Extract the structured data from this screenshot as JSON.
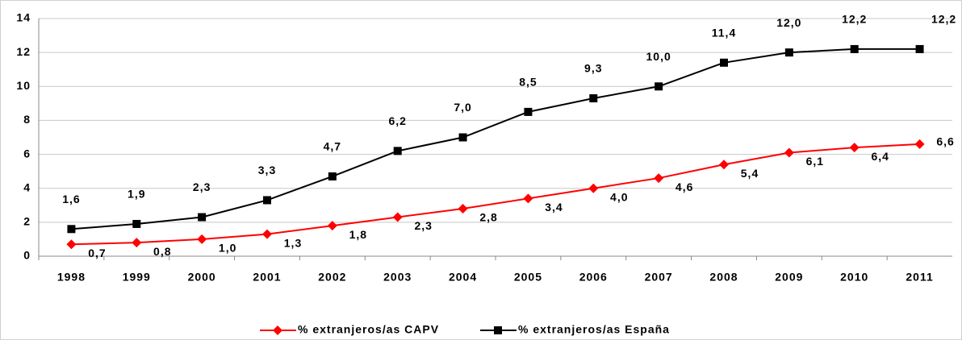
{
  "chart_data": {
    "type": "line",
    "categories": [
      "1998",
      "1999",
      "2000",
      "2001",
      "2002",
      "2003",
      "2004",
      "2005",
      "2006",
      "2007",
      "2008",
      "2009",
      "2010",
      "2011"
    ],
    "series": [
      {
        "name": "% extranjeros/as CAPV",
        "color": "#ff0000",
        "marker": "diamond",
        "values": [
          0.7,
          0.8,
          1.0,
          1.3,
          1.8,
          2.3,
          2.8,
          3.4,
          4.0,
          4.6,
          5.4,
          6.1,
          6.4,
          6.6
        ],
        "value_labels": [
          "0,7",
          "0,8",
          "1,0",
          "1,3",
          "1,8",
          "2,3",
          "2,8",
          "3,4",
          "4,0",
          "4,6",
          "5,4",
          "6,1",
          "6,4",
          "6,6"
        ]
      },
      {
        "name": "% extranjeros/as España",
        "color": "#000000",
        "marker": "square",
        "values": [
          1.6,
          1.9,
          2.3,
          3.3,
          4.7,
          6.2,
          7.0,
          8.5,
          9.3,
          10.0,
          11.4,
          12.0,
          12.2,
          12.2
        ],
        "value_labels": [
          "1,6",
          "1,9",
          "2,3",
          "3,3",
          "4,7",
          "6,2",
          "7,0",
          "8,5",
          "9,3",
          "10,0",
          "11,4",
          "12,0",
          "12,2",
          "12,2"
        ]
      }
    ],
    "ylim": [
      0,
      14
    ],
    "yticks": [
      0,
      2,
      4,
      6,
      8,
      10,
      12,
      14
    ],
    "grid": true,
    "legend": "bottom"
  }
}
